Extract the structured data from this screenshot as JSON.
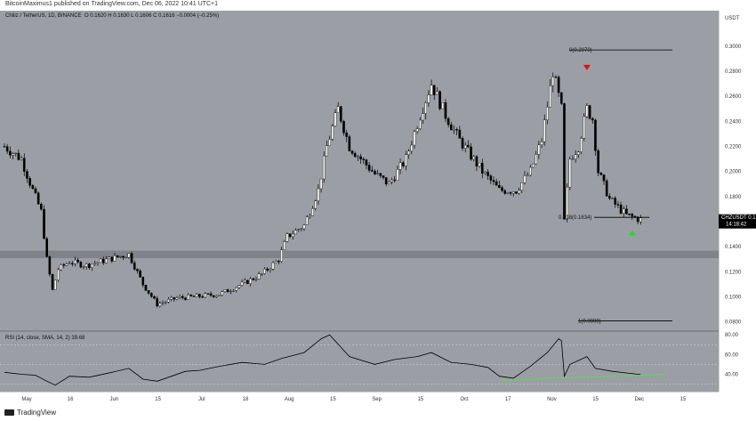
{
  "header": {
    "publisher_line": "BitcoinMaximus1 published on TradingView.com, Dec 06, 2022 10:41 UTC+1"
  },
  "legend": {
    "symbol": "Chiliz / TetherUS, 1D, BINANCE",
    "ohlc": "O 0.1620  H 0.1630  L 0.1606  C 0.1616  −0.0004 (−0.25%)"
  },
  "rsi_legend": "RSI (14, close, SMA, 14, 2)  39.68",
  "branding": {
    "logo_text": "TradingView"
  },
  "price_axis_title": "USDT",
  "price_label": {
    "symbol": "CHZUSDT",
    "price": "0.1616",
    "countdown": "14:18:42"
  },
  "fib_labels": {
    "top": "0(0.2970)",
    "mid": "0.618(0.1634)",
    "bottom": "1(0.0808)"
  },
  "colors": {
    "background": "#9c9ea6",
    "candle_up": "#ffffff",
    "candle_down": "#000000",
    "support_zone": "#7c7e86",
    "arrow_down": "#e01010",
    "arrow_up": "#22dd22",
    "rsi_line": "#000000",
    "rsi_trend": "#55dd55",
    "price_label_bg": "#000000"
  },
  "chart_data": [
    {
      "type": "candlestick",
      "title": "Chiliz / TetherUS, 1D, BINANCE",
      "ylabel": "USDT",
      "y_ticks": [
        0.08,
        0.1,
        0.12,
        0.14,
        0.16,
        0.18,
        0.2,
        0.22,
        0.24,
        0.26,
        0.28,
        0.3
      ],
      "y_tick_labels": [
        "0.0800",
        "0.1000",
        "0.1200",
        "0.1400",
        "0.1600",
        "0.1800",
        "0.2000",
        "0.2200",
        "0.2400",
        "0.2600",
        "0.2800",
        "0.3000"
      ],
      "ylim": [
        0.074,
        0.317
      ],
      "x_ticks": [
        "May",
        "16",
        "Jun",
        "15",
        "Jul",
        "18",
        "Aug",
        "15",
        "Sep",
        "15",
        "Oct",
        "17",
        "Nov",
        "15",
        "Dec",
        "15"
      ],
      "x_range": [
        "2022-04-25",
        "2022-12-21"
      ],
      "close_series": [
        {
          "date": "2022-04-25",
          "close": 0.22
        },
        {
          "date": "2022-05-01",
          "close": 0.21
        },
        {
          "date": "2022-05-05",
          "close": 0.185
        },
        {
          "date": "2022-05-08",
          "close": 0.168
        },
        {
          "date": "2022-05-10",
          "close": 0.13
        },
        {
          "date": "2022-05-12",
          "close": 0.105
        },
        {
          "date": "2022-05-14",
          "close": 0.122
        },
        {
          "date": "2022-05-18",
          "close": 0.128
        },
        {
          "date": "2022-05-24",
          "close": 0.125
        },
        {
          "date": "2022-06-01",
          "close": 0.13
        },
        {
          "date": "2022-06-08",
          "close": 0.134
        },
        {
          "date": "2022-06-13",
          "close": 0.11
        },
        {
          "date": "2022-06-18",
          "close": 0.094
        },
        {
          "date": "2022-06-25",
          "close": 0.099
        },
        {
          "date": "2022-07-01",
          "close": 0.1
        },
        {
          "date": "2022-07-10",
          "close": 0.102
        },
        {
          "date": "2022-07-18",
          "close": 0.11
        },
        {
          "date": "2022-07-25",
          "close": 0.118
        },
        {
          "date": "2022-07-31",
          "close": 0.13
        },
        {
          "date": "2022-08-03",
          "close": 0.148
        },
        {
          "date": "2022-08-09",
          "close": 0.157
        },
        {
          "date": "2022-08-14",
          "close": 0.185
        },
        {
          "date": "2022-08-17",
          "close": 0.22
        },
        {
          "date": "2022-08-21",
          "close": 0.25
        },
        {
          "date": "2022-08-25",
          "close": 0.22
        },
        {
          "date": "2022-09-03",
          "close": 0.198
        },
        {
          "date": "2022-09-08",
          "close": 0.19
        },
        {
          "date": "2022-09-14",
          "close": 0.21
        },
        {
          "date": "2022-09-19",
          "close": 0.245
        },
        {
          "date": "2022-09-23",
          "close": 0.27
        },
        {
          "date": "2022-09-28",
          "close": 0.245
        },
        {
          "date": "2022-10-03",
          "close": 0.225
        },
        {
          "date": "2022-10-11",
          "close": 0.2
        },
        {
          "date": "2022-10-17",
          "close": 0.185
        },
        {
          "date": "2022-10-23",
          "close": 0.185
        },
        {
          "date": "2022-10-28",
          "close": 0.2
        },
        {
          "date": "2022-11-01",
          "close": 0.225
        },
        {
          "date": "2022-11-05",
          "close": 0.28
        },
        {
          "date": "2022-11-08",
          "close": 0.25
        },
        {
          "date": "2022-11-09",
          "close": 0.16
        },
        {
          "date": "2022-11-11",
          "close": 0.21
        },
        {
          "date": "2022-11-14",
          "close": 0.22
        },
        {
          "date": "2022-11-17",
          "close": 0.25
        },
        {
          "date": "2022-11-19",
          "close": 0.242
        },
        {
          "date": "2022-11-21",
          "close": 0.2
        },
        {
          "date": "2022-11-25",
          "close": 0.178
        },
        {
          "date": "2022-12-01",
          "close": 0.165
        },
        {
          "date": "2022-12-06",
          "close": 0.1616
        }
      ],
      "support_zone": [
        0.1308,
        0.1368
      ],
      "fib_levels": [
        {
          "label": "0(0.2970)",
          "value": 0.297
        },
        {
          "label": "0.618(0.1634)",
          "value": 0.1634
        },
        {
          "label": "1(0.0808)",
          "value": 0.0808
        }
      ],
      "markers": [
        {
          "kind": "arrow-down",
          "date": "2022-11-17",
          "value": 0.283
        },
        {
          "kind": "arrow-up",
          "date": "2022-12-03",
          "value": 0.151
        }
      ],
      "last_price": 0.1616
    },
    {
      "type": "line",
      "title": "RSI (14, close, SMA, 14, 2)",
      "last_value": 39.68,
      "y_ticks": [
        40,
        60,
        80
      ],
      "y_tick_labels": [
        "40.00",
        "60.00",
        "80.00"
      ],
      "band_levels": [
        30,
        50,
        70
      ],
      "ylim": [
        26,
        82
      ],
      "series": [
        {
          "values": [
            {
              "date": "2022-04-25",
              "v": 42
            },
            {
              "date": "2022-05-01",
              "v": 40
            },
            {
              "date": "2022-05-06",
              "v": 39
            },
            {
              "date": "2022-05-10",
              "v": 33
            },
            {
              "date": "2022-05-13",
              "v": 29
            },
            {
              "date": "2022-05-18",
              "v": 38
            },
            {
              "date": "2022-05-25",
              "v": 37
            },
            {
              "date": "2022-06-02",
              "v": 42
            },
            {
              "date": "2022-06-08",
              "v": 46
            },
            {
              "date": "2022-06-13",
              "v": 35
            },
            {
              "date": "2022-06-18",
              "v": 33
            },
            {
              "date": "2022-06-28",
              "v": 43
            },
            {
              "date": "2022-07-03",
              "v": 44
            },
            {
              "date": "2022-07-10",
              "v": 48
            },
            {
              "date": "2022-07-18",
              "v": 52
            },
            {
              "date": "2022-07-26",
              "v": 50
            },
            {
              "date": "2022-08-01",
              "v": 56
            },
            {
              "date": "2022-08-09",
              "v": 62
            },
            {
              "date": "2022-08-15",
              "v": 76
            },
            {
              "date": "2022-08-18",
              "v": 80
            },
            {
              "date": "2022-08-25",
              "v": 58
            },
            {
              "date": "2022-09-03",
              "v": 50
            },
            {
              "date": "2022-09-10",
              "v": 55
            },
            {
              "date": "2022-09-18",
              "v": 58
            },
            {
              "date": "2022-09-23",
              "v": 62
            },
            {
              "date": "2022-09-30",
              "v": 52
            },
            {
              "date": "2022-10-07",
              "v": 50
            },
            {
              "date": "2022-10-13",
              "v": 47
            },
            {
              "date": "2022-10-17",
              "v": 38
            },
            {
              "date": "2022-10-22",
              "v": 36
            },
            {
              "date": "2022-10-28",
              "v": 48
            },
            {
              "date": "2022-11-03",
              "v": 62
            },
            {
              "date": "2022-11-07",
              "v": 76
            },
            {
              "date": "2022-11-08",
              "v": 74
            },
            {
              "date": "2022-11-09",
              "v": 38
            },
            {
              "date": "2022-11-11",
              "v": 50
            },
            {
              "date": "2022-11-17",
              "v": 58
            },
            {
              "date": "2022-11-20",
              "v": 46
            },
            {
              "date": "2022-11-26",
              "v": 43
            },
            {
              "date": "2022-12-02",
              "v": 41
            },
            {
              "date": "2022-12-06",
              "v": 39.68
            }
          ]
        }
      ],
      "trendline": [
        {
          "date": "2022-10-17",
          "v": 34
        },
        {
          "date": "2022-12-15",
          "v": 40
        }
      ]
    }
  ]
}
